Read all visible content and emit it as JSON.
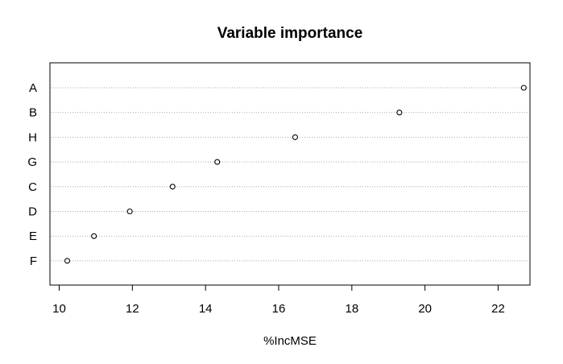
{
  "chart_data": {
    "type": "scatter",
    "title": "Variable importance",
    "xlabel": "%IncMSE",
    "ylabel": "",
    "xlim": [
      9.7,
      23.0
    ],
    "x_ticks": [
      10,
      12,
      14,
      16,
      18,
      20,
      22
    ],
    "grid": "horizontal-dotted",
    "categories": [
      "A",
      "B",
      "H",
      "G",
      "C",
      "D",
      "E",
      "F"
    ],
    "values": [
      22.7,
      19.3,
      16.45,
      14.32,
      13.1,
      11.93,
      10.95,
      10.22
    ]
  }
}
